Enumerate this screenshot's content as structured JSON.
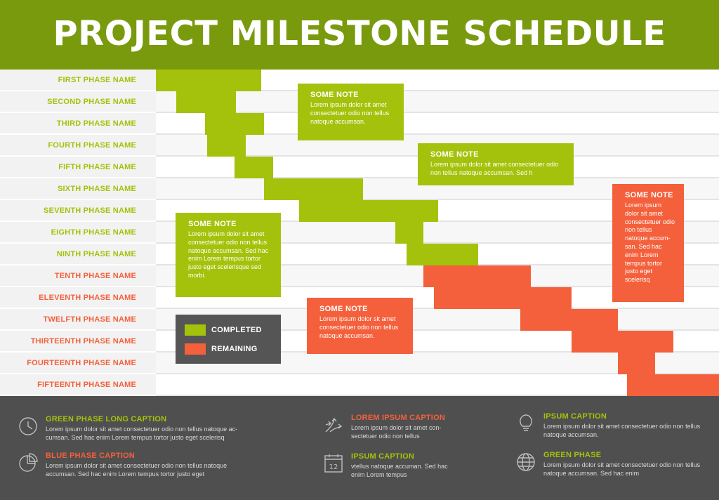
{
  "title": "PROJECT MILESTONE SCHEDULE",
  "colors": {
    "header": "#7a9a0e",
    "completed": "#a4c20b",
    "remaining": "#f4603c",
    "footer": "#4f4f4f",
    "legend_bg": "#555555"
  },
  "phases": [
    {
      "name": "FIRST PHASE NAME",
      "status": "completed"
    },
    {
      "name": "SECOND PHASE NAME",
      "status": "completed"
    },
    {
      "name": "THIRD PHASE NAME",
      "status": "completed"
    },
    {
      "name": "FOURTH PHASE NAME",
      "status": "completed"
    },
    {
      "name": "FIFTH PHASE NAME",
      "status": "completed"
    },
    {
      "name": "SIXTH PHASE NAME",
      "status": "completed"
    },
    {
      "name": "SEVENTH PHASE NAME",
      "status": "completed"
    },
    {
      "name": "EIGHTH PHASE NAME",
      "status": "completed"
    },
    {
      "name": "NINTH PHASE NAME",
      "status": "completed"
    },
    {
      "name": "TENTH PHASE NAME",
      "status": "remaining"
    },
    {
      "name": "ELEVENTH PHASE NAME",
      "status": "remaining"
    },
    {
      "name": "TWELFTH PHASE NAME",
      "status": "remaining"
    },
    {
      "name": "THIRTEENTH PHASE NAME",
      "status": "remaining"
    },
    {
      "name": "FOURTEENTH PHASE NAME",
      "status": "remaining"
    },
    {
      "name": "FIFTEENTH PHASE NAME",
      "status": "remaining"
    }
  ],
  "notes": [
    {
      "title": "SOME NOTE",
      "text": "Lorem ipsum dolor sit amet consectetuer odio non tellus natoque accumsan.",
      "color": "completed"
    },
    {
      "title": "SOME NOTE",
      "text": "Lorem ipsum dolor sit amet consectetuer odio non tellus natoque accumsan. Sed h",
      "color": "completed"
    },
    {
      "title": "SOME NOTE",
      "text": "Lorem ipsum dolor sit amet consectetuer odio non tellus natoque accum-san. Sed hac enim Lorem tempus tortor justo eget scelerisq",
      "color": "remaining"
    },
    {
      "title": "SOME NOTE",
      "text": "Lorem ipsum dolor sit amet consectetuer odio non tellus natoque accumsan. Sed hac enim Lorem tempus tortor justo eget scelerisque sed morbi.",
      "color": "completed"
    },
    {
      "title": "SOME NOTE",
      "text": "Lorem ipsum dolor sit amet consectetuer odio non tellus natoque accumsan.",
      "color": "remaining"
    }
  ],
  "legend": {
    "completed": "COMPLETED",
    "remaining": "REMAINING"
  },
  "captions": [
    {
      "icon": "clock-icon",
      "title": "GREEN PHASE LONG CAPTION",
      "text": "Lorem ipsum dolor sit amet consectetuer odio non tellus natoque ac-cumsan. Sed hac enim Lorem tempus tortor justo eget scelerisq",
      "color": "#a4c20b"
    },
    {
      "icon": "pie-chart-icon",
      "title": "BLUE PHASE CAPTION",
      "text": "Lorem ipsum dolor sit amet consectetuer odio non tellus natoque accumsan. Sed hac enim Lorem tempus tortor justo eget",
      "color": "#f4603c"
    },
    {
      "icon": "arrows-icon",
      "title": "LOREM IPSUM CAPTION",
      "text": "Lorem ipsum dolor sit amet con-sectetuer odio non tellus",
      "color": "#f4603c"
    },
    {
      "icon": "calendar-icon",
      "title": "IPSUM CAPTION",
      "text": "vtellus natoque accuman. Sed hac enim Lorem tempus",
      "color": "#a4c20b",
      "icon_text": "12"
    },
    {
      "icon": "lightbulb-icon",
      "title": "IPSUM CAPTION",
      "text": "Lorem ipsum dolor sit amet consectetuer odio non tellus natoque accumsan.",
      "color": "#a4c20b"
    },
    {
      "icon": "globe-icon",
      "title": "GREEN PHASE",
      "text": "Lorem ipsum dolor sit amet consectetuer odio non tellus natoque accumsan. Sed hac enim",
      "color": "#a4c20b"
    }
  ]
}
